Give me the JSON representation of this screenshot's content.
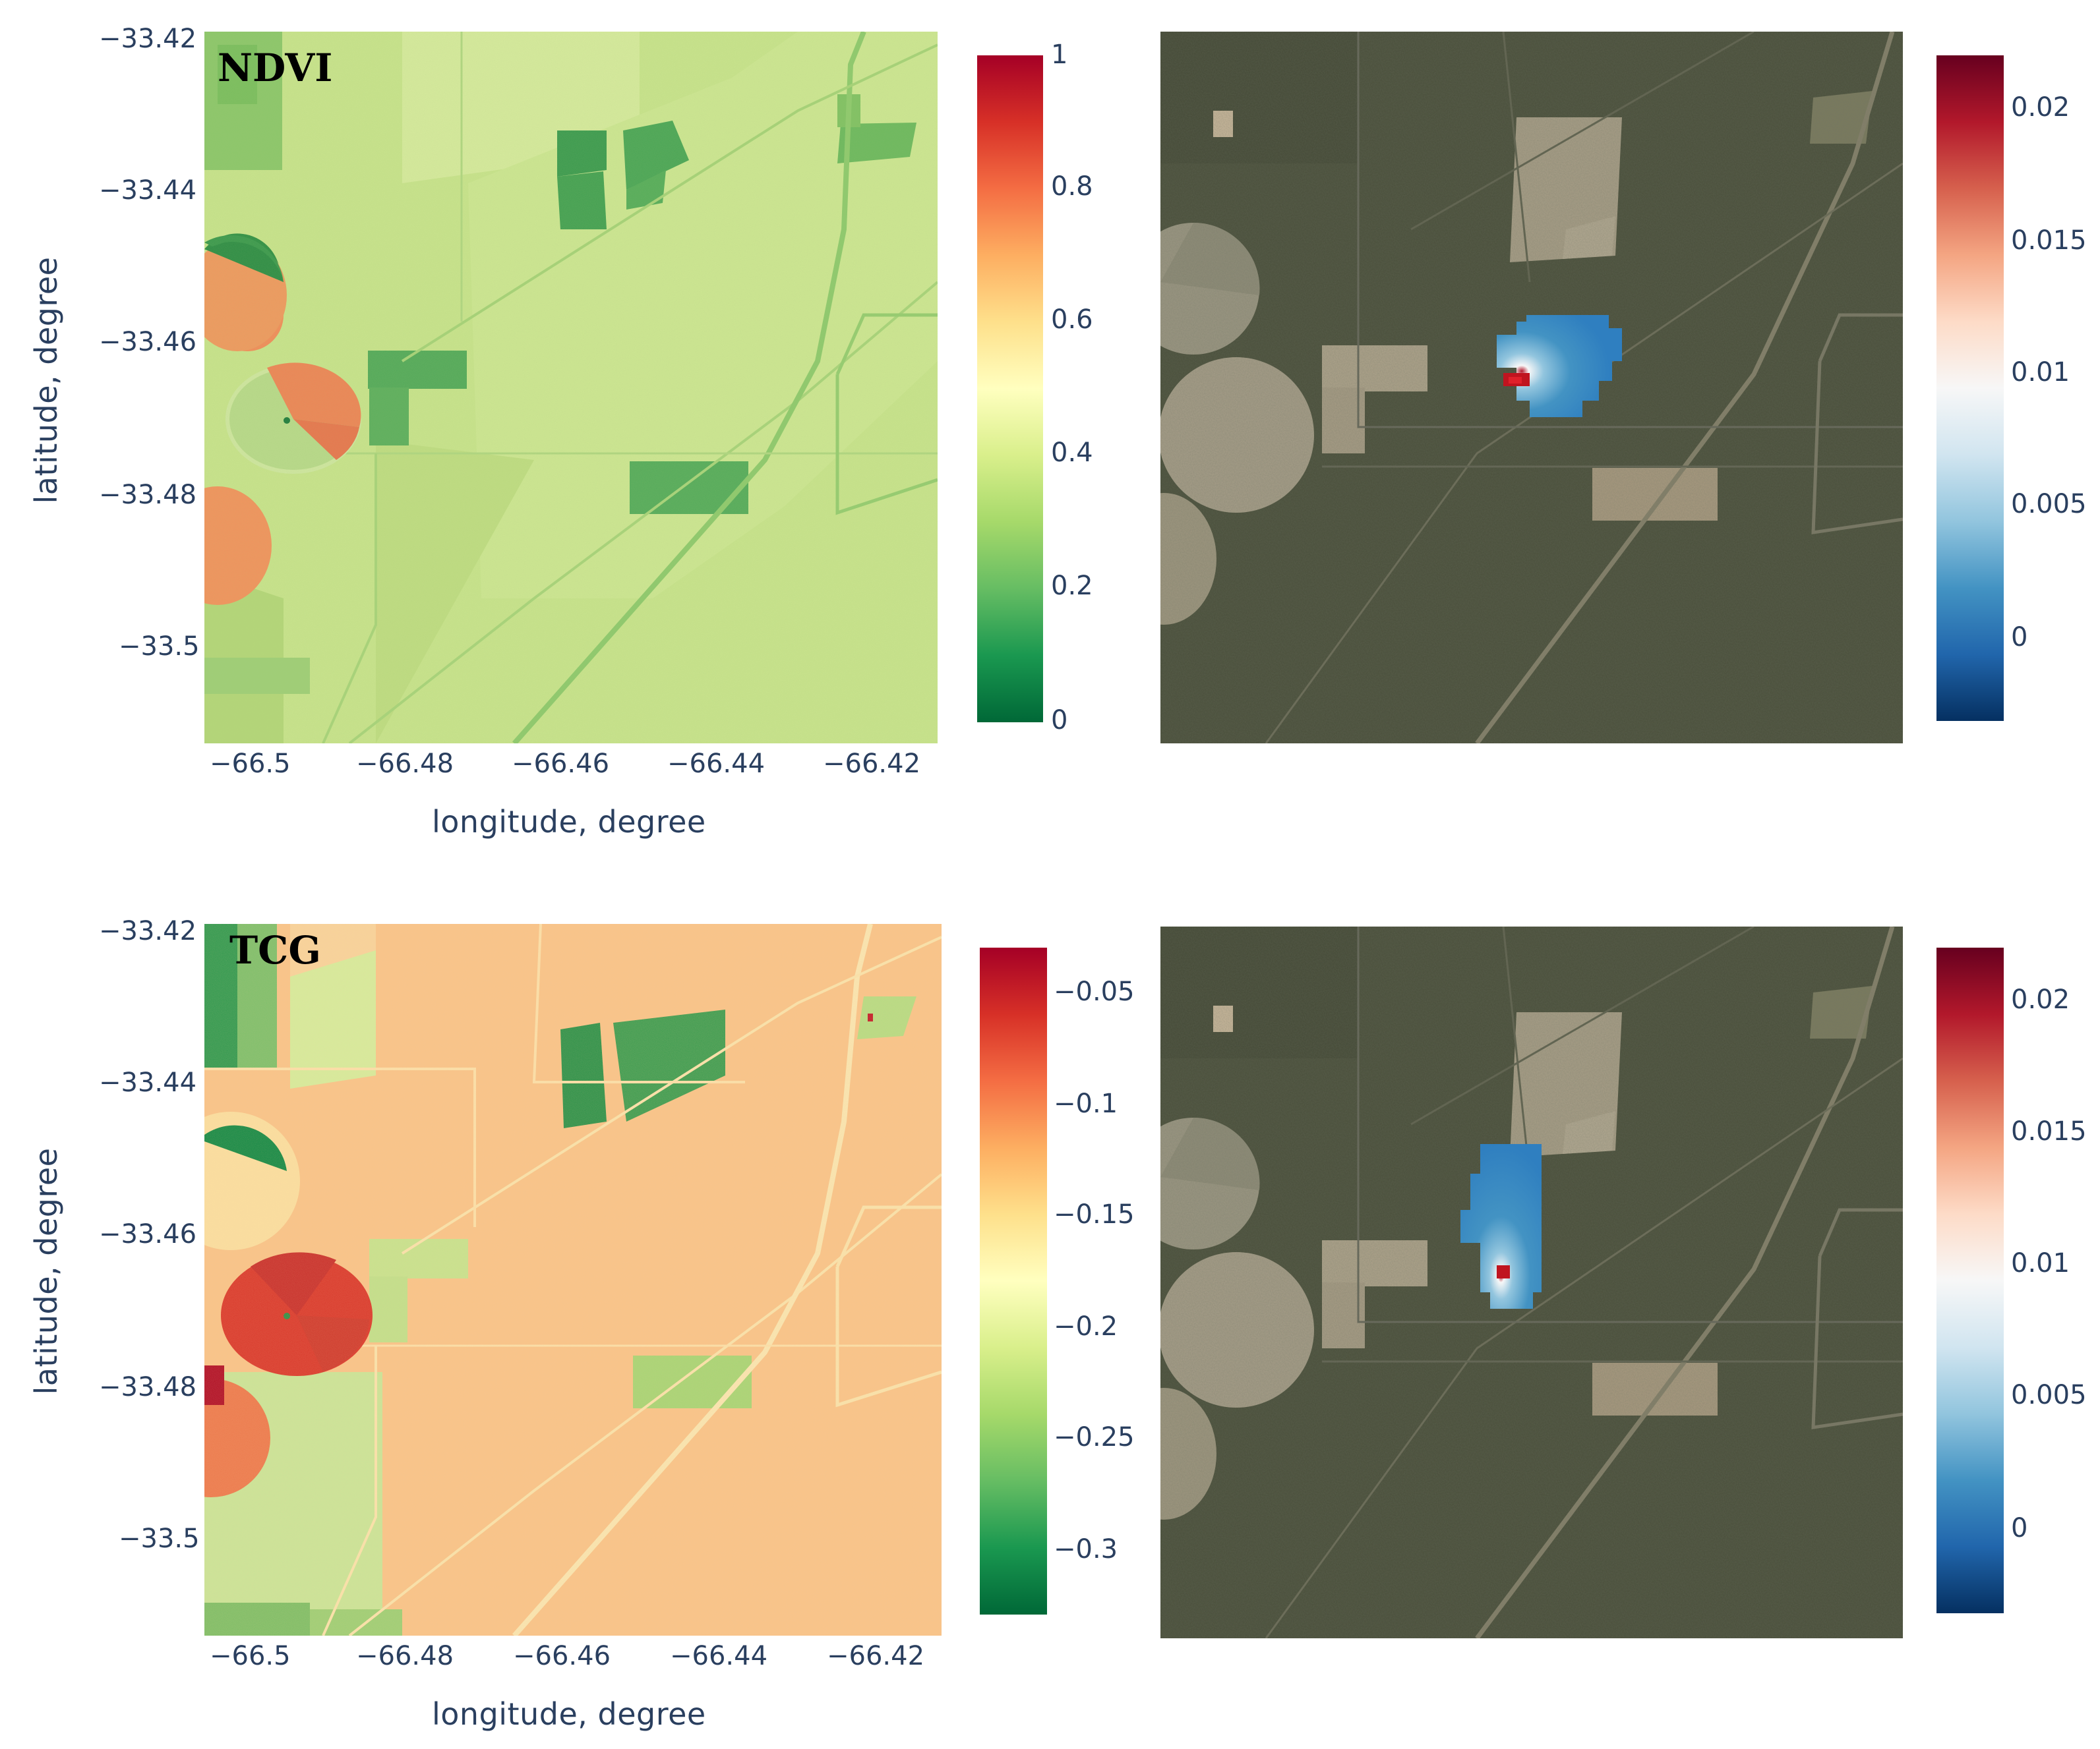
{
  "chart_data": [
    {
      "type": "heatmap",
      "label": "NDVI",
      "xlabel": "longitude, degree",
      "ylabel": "latitude, degree",
      "x_ticks": [
        "−66.5",
        "−66.48",
        "−66.46",
        "−66.44",
        "−66.42"
      ],
      "y_ticks": [
        "−33.42",
        "−33.44",
        "−33.46",
        "−33.48",
        "−33.5"
      ],
      "xlim": [
        -66.507,
        -66.413
      ],
      "ylim": [
        -33.513,
        -33.42
      ],
      "colorscale": "RdYlGn",
      "colorbar_ticks": [
        "1",
        "0.8",
        "0.6",
        "0.4",
        "0.2",
        "0"
      ],
      "colorbar_range": [
        0,
        1
      ]
    },
    {
      "type": "heatmap",
      "overlay_on": "satellite image",
      "colorscale": "RdBu",
      "colorbar_ticks": [
        "0.02",
        "0.015",
        "0.01",
        "0.005",
        "0"
      ],
      "colorbar_range": [
        -0.003,
        0.022
      ],
      "hotspot": {
        "peak_value": 0.022
      }
    },
    {
      "type": "heatmap",
      "label": "TCG",
      "xlabel": "longitude, degree",
      "ylabel": "latitude, degree",
      "x_ticks": [
        "−66.5",
        "−66.48",
        "−66.46",
        "−66.44",
        "−66.42"
      ],
      "y_ticks": [
        "−33.42",
        "−33.44",
        "−33.46",
        "−33.48",
        "−33.5"
      ],
      "xlim": [
        -66.507,
        -66.413
      ],
      "ylim": [
        -33.513,
        -33.42
      ],
      "colorscale": "RdYlGn",
      "colorbar_ticks": [
        "−0.05",
        "−0.1",
        "−0.15",
        "−0.2",
        "−0.25",
        "−0.3"
      ],
      "colorbar_range": [
        -0.33,
        -0.03
      ]
    },
    {
      "type": "heatmap",
      "overlay_on": "satellite image",
      "colorscale": "RdBu",
      "colorbar_ticks": [
        "0.02",
        "0.015",
        "0.01",
        "0.005",
        "0"
      ],
      "colorbar_range": [
        -0.003,
        0.022
      ],
      "hotspot": {
        "peak_value": 0.022
      }
    }
  ],
  "colors": {
    "rdylgn": [
      "#006837",
      "#1a9850",
      "#66bd63",
      "#a6d96a",
      "#d9ef8b",
      "#ffffbf",
      "#fee08b",
      "#fdae61",
      "#f46d43",
      "#d73027",
      "#a50026"
    ],
    "rdbu": [
      "#053061",
      "#2166ac",
      "#4393c3",
      "#92c5de",
      "#d1e5f0",
      "#f7f7f7",
      "#fddbc7",
      "#f4a582",
      "#d6604d",
      "#b2182b",
      "#67001f"
    ],
    "ndvi_base": "#c7e18a",
    "tcg_base": "#f6bf80",
    "satellite_base": "#4b4f3c"
  }
}
